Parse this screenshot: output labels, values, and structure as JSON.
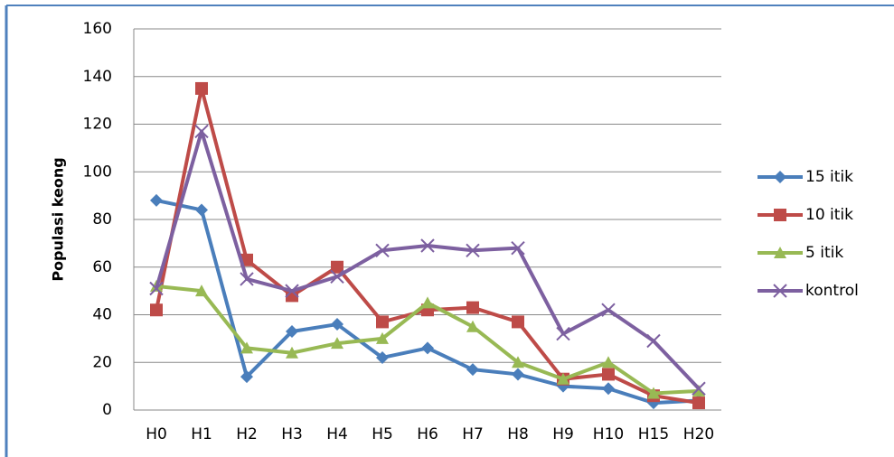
{
  "chart_data": {
    "type": "line",
    "y_label": "Populasi keong",
    "categories": [
      "H0",
      "H1",
      "H2",
      "H3",
      "H4",
      "H5",
      "H6",
      "H7",
      "H8",
      "H9",
      "H10",
      "H15",
      "H20"
    ],
    "series": [
      {
        "name": "15 itik",
        "color": "#4a7ebb",
        "marker": "diamond",
        "values": [
          88,
          84,
          14,
          33,
          36,
          22,
          26,
          17,
          15,
          10,
          9,
          3,
          4
        ]
      },
      {
        "name": "10 itik",
        "color": "#be4b48",
        "marker": "square",
        "values": [
          42,
          135,
          63,
          48,
          60,
          37,
          42,
          43,
          37,
          13,
          15,
          6,
          3
        ]
      },
      {
        "name": "5 itik",
        "color": "#98b954",
        "marker": "triangle",
        "values": [
          52,
          50,
          26,
          24,
          28,
          30,
          45,
          35,
          20,
          13,
          20,
          7,
          8
        ]
      },
      {
        "name": "kontrol",
        "color": "#7d60a0",
        "marker": "x",
        "values": [
          51,
          117,
          55,
          50,
          56,
          67,
          69,
          67,
          68,
          32,
          42,
          29,
          9
        ]
      }
    ],
    "ylim": [
      0,
      160
    ],
    "yticks": [
      0,
      20,
      40,
      60,
      80,
      100,
      120,
      140,
      160
    ],
    "grid": true,
    "legend": "right"
  }
}
